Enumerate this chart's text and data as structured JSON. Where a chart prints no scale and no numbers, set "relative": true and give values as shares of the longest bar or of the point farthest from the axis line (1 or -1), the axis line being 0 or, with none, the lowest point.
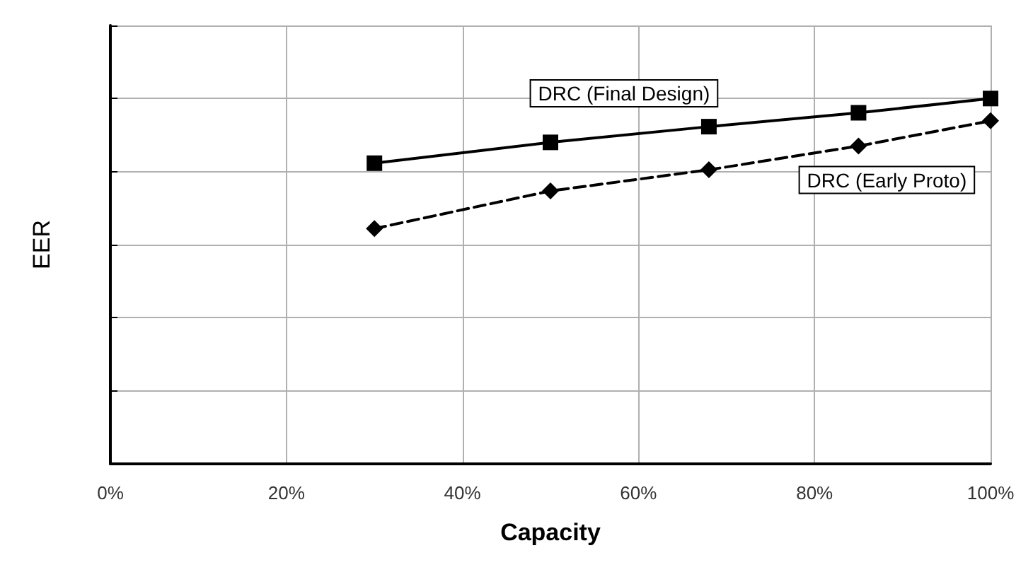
{
  "chart_data": {
    "type": "line",
    "relative": true,
    "xlabel": "Capacity",
    "ylabel": "EER",
    "xlim": [
      0,
      100
    ],
    "xticks": [
      {
        "value": 0,
        "label": "0%"
      },
      {
        "value": 20,
        "label": "20%"
      },
      {
        "value": 40,
        "label": "40%"
      },
      {
        "value": 60,
        "label": "60%"
      },
      {
        "value": 80,
        "label": "80%"
      },
      {
        "value": 100,
        "label": "100%"
      }
    ],
    "x": [
      30,
      50,
      68,
      85,
      100
    ],
    "grid": true,
    "legend": false,
    "series": [
      {
        "name": "DRC (Final Design)",
        "color": "#000000",
        "marker": "square",
        "line_style": "solid",
        "values": [
          0.823,
          0.88,
          0.923,
          0.961,
          1
        ]
      },
      {
        "name": "DRC (Early Proto)",
        "color": "#000000",
        "marker": "diamond",
        "line_style": "dashed",
        "values": [
          0.644,
          0.747,
          0.805,
          0.87,
          0.939
        ]
      }
    ]
  }
}
